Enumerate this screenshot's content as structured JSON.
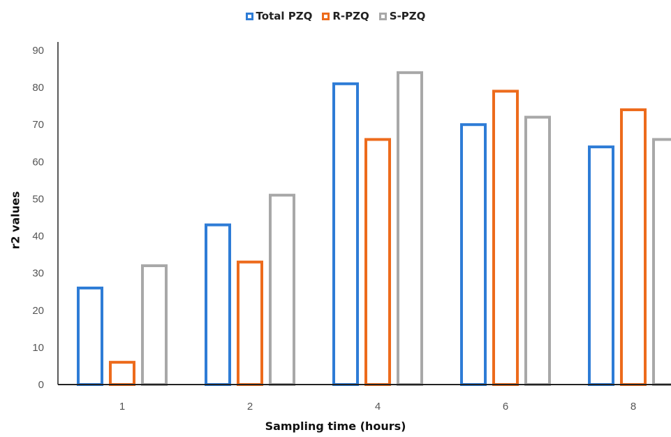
{
  "chart_data": {
    "type": "bar",
    "categories": [
      "1",
      "2",
      "4",
      "6",
      "8"
    ],
    "series": [
      {
        "name": "Total PZQ",
        "values": [
          26,
          43,
          81,
          70,
          64
        ],
        "color": "#2e7cd6"
      },
      {
        "name": "R-PZQ",
        "values": [
          6,
          33,
          66,
          79,
          74
        ],
        "color": "#ed6b1c"
      },
      {
        "name": "S-PZQ",
        "values": [
          32,
          51,
          84,
          72,
          66
        ],
        "color": "#a8a8a8"
      }
    ],
    "xlabel": "Sampling time (hours)",
    "ylabel": "r2 values",
    "ylim": [
      0,
      90
    ],
    "yticks": [
      0,
      10,
      20,
      30,
      40,
      50,
      60,
      70,
      80,
      90
    ],
    "grid": false,
    "legend_position": "top-center"
  }
}
